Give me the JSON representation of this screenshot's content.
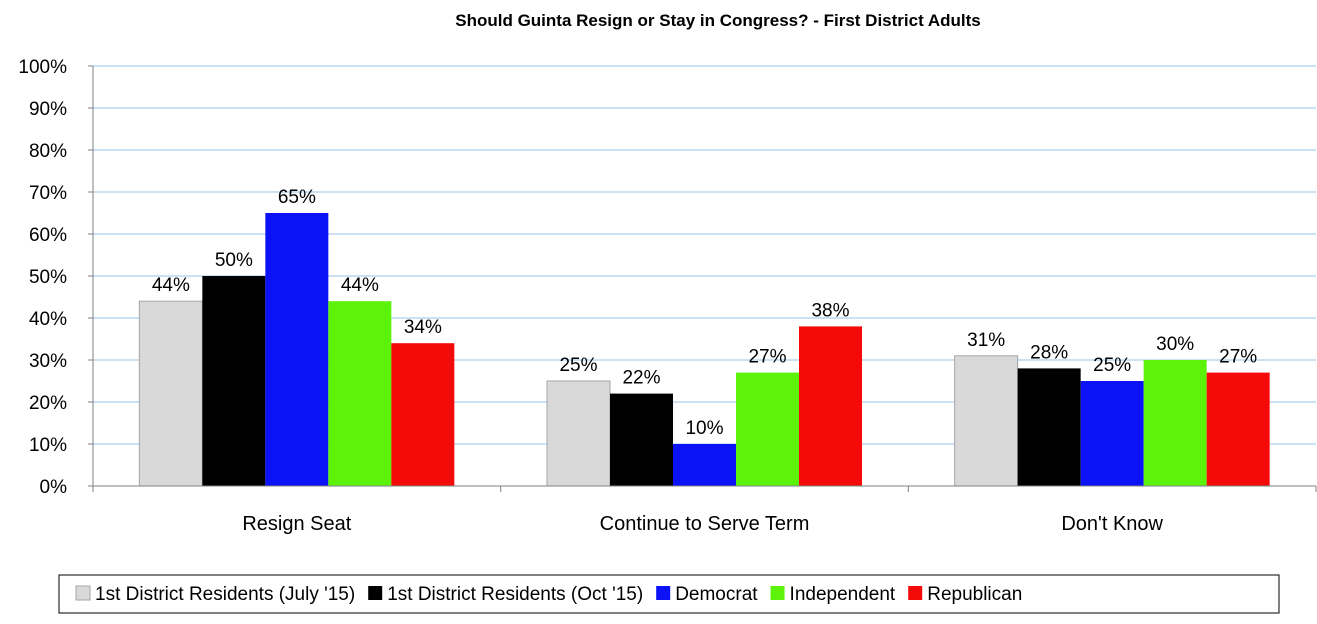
{
  "chart_data": {
    "type": "bar",
    "title": "Should Guinta Resign or Stay in Congress? - First District Adults",
    "xlabel": "",
    "ylabel": "",
    "ylim": [
      0,
      100
    ],
    "y_ticks": [
      "0%",
      "10%",
      "20%",
      "30%",
      "40%",
      "50%",
      "60%",
      "70%",
      "80%",
      "90%",
      "100%"
    ],
    "categories": [
      "Resign Seat",
      "Continue to Serve Term",
      "Don't Know"
    ],
    "series": [
      {
        "name": "1st District Residents (July '15)",
        "color": "#d9d9d9",
        "values": [
          44,
          25,
          31
        ],
        "labels": [
          "44%",
          "25%",
          "31%"
        ]
      },
      {
        "name": "1st District Residents (Oct '15)",
        "color": "#000000",
        "values": [
          50,
          22,
          28
        ],
        "labels": [
          "50%",
          "22%",
          "28%"
        ]
      },
      {
        "name": "Democrat",
        "color": "#0b12f5",
        "values": [
          65,
          10,
          25
        ],
        "labels": [
          "65%",
          "10%",
          "25%"
        ]
      },
      {
        "name": "Independent",
        "color": "#5cf20a",
        "values": [
          44,
          27,
          30
        ],
        "labels": [
          "44%",
          "27%",
          "30%"
        ]
      },
      {
        "name": "Republican",
        "color": "#f50a0a",
        "values": [
          34,
          38,
          27
        ],
        "labels": [
          "34%",
          "38%",
          "27%"
        ]
      }
    ],
    "grid": true,
    "legend_position": "bottom"
  }
}
